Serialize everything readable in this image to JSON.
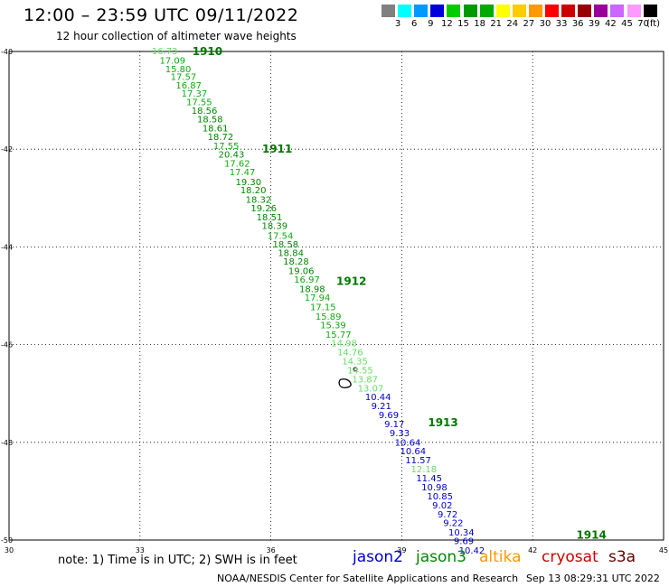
{
  "header": {
    "title": "12:00 – 23:59 UTC 09/11/2022",
    "subtitle": "12 hour collection of altimeter wave heights"
  },
  "scale": {
    "colors": [
      "#808080",
      "#00ffff",
      "#0099ff",
      "#0000dd",
      "#00cc00",
      "#009900",
      "#00aa00",
      "#ffff00",
      "#ffcc00",
      "#ff9900",
      "#ff0000",
      "#cc0000",
      "#990000",
      "#990099",
      "#cc66ff",
      "#ff99ff",
      "#000000"
    ],
    "labels": [
      "3",
      "6",
      "9",
      "12",
      "15",
      "18",
      "21",
      "24",
      "27",
      "30",
      "33",
      "36",
      "39",
      "42",
      "45",
      "70"
    ],
    "unit": "(ft)"
  },
  "axes": {
    "lon_ticks": [
      "30",
      "33",
      "36",
      "39",
      "42",
      "45"
    ],
    "lat_ticks": [
      "-40",
      "-42",
      "-44",
      "-46",
      "-48",
      "-50"
    ]
  },
  "chart_data": {
    "type": "map",
    "x_range": [
      30,
      45
    ],
    "y_range": [
      -50,
      -40
    ],
    "grid": true,
    "hour_markers": [
      {
        "label": "1910",
        "lon": 34.2,
        "lat": -40.0
      },
      {
        "label": "1911",
        "lon": 35.8,
        "lat": -42.0
      },
      {
        "label": "1912",
        "lon": 37.5,
        "lat": -44.7
      },
      {
        "label": "1913",
        "lon": 39.6,
        "lat": -47.6
      },
      {
        "label": "1914",
        "lon": 43.0,
        "lat": -49.9
      }
    ],
    "readings": [
      {
        "v": "16.73",
        "sat": "jason3",
        "h": "l",
        "lon": 33.27,
        "lat": -40.0
      },
      {
        "v": "17.09",
        "sat": "jason3",
        "h": "m",
        "lon": 33.45,
        "lat": -40.19
      },
      {
        "v": "15.80",
        "sat": "jason3",
        "h": "m",
        "lon": 33.58,
        "lat": -40.37
      },
      {
        "v": "17.57",
        "sat": "jason3",
        "h": "m",
        "lon": 33.7,
        "lat": -40.53
      },
      {
        "v": "16.87",
        "sat": "jason3",
        "h": "m",
        "lon": 33.82,
        "lat": -40.7
      },
      {
        "v": "17.37",
        "sat": "jason3",
        "h": "m",
        "lon": 33.95,
        "lat": -40.87
      },
      {
        "v": "17.55",
        "sat": "jason3",
        "h": "m",
        "lon": 34.06,
        "lat": -41.04
      },
      {
        "v": "18.56",
        "sat": "jason3",
        "h": "d",
        "lon": 34.18,
        "lat": -41.22
      },
      {
        "v": "18.58",
        "sat": "jason3",
        "h": "d",
        "lon": 34.31,
        "lat": -41.4
      },
      {
        "v": "18.61",
        "sat": "jason3",
        "h": "d",
        "lon": 34.43,
        "lat": -41.58
      },
      {
        "v": "18.72",
        "sat": "jason3",
        "h": "d",
        "lon": 34.55,
        "lat": -41.76
      },
      {
        "v": "17.55",
        "sat": "jason3",
        "h": "m",
        "lon": 34.68,
        "lat": -41.94
      },
      {
        "v": "20.43",
        "sat": "jason3",
        "h": "d",
        "lon": 34.8,
        "lat": -42.12
      },
      {
        "v": "17.62",
        "sat": "jason3",
        "h": "m",
        "lon": 34.93,
        "lat": -42.3
      },
      {
        "v": "17.47",
        "sat": "jason3",
        "h": "m",
        "lon": 35.05,
        "lat": -42.48
      },
      {
        "v": "19.30",
        "sat": "jason3",
        "h": "d",
        "lon": 35.19,
        "lat": -42.68
      },
      {
        "v": "18.20",
        "sat": "jason3",
        "h": "d",
        "lon": 35.3,
        "lat": -42.85
      },
      {
        "v": "18.32",
        "sat": "jason3",
        "h": "d",
        "lon": 35.42,
        "lat": -43.04
      },
      {
        "v": "19.26",
        "sat": "jason3",
        "h": "d",
        "lon": 35.54,
        "lat": -43.22
      },
      {
        "v": "18.51",
        "sat": "jason3",
        "h": "d",
        "lon": 35.67,
        "lat": -43.4
      },
      {
        "v": "18.39",
        "sat": "jason3",
        "h": "d",
        "lon": 35.79,
        "lat": -43.58
      },
      {
        "v": "17.54",
        "sat": "jason3",
        "h": "m",
        "lon": 35.92,
        "lat": -43.78
      },
      {
        "v": "18.58",
        "sat": "jason3",
        "h": "d",
        "lon": 36.04,
        "lat": -43.96
      },
      {
        "v": "18.84",
        "sat": "jason3",
        "h": "d",
        "lon": 36.16,
        "lat": -44.13
      },
      {
        "v": "18.28",
        "sat": "jason3",
        "h": "d",
        "lon": 36.28,
        "lat": -44.31
      },
      {
        "v": "19.06",
        "sat": "jason3",
        "h": "d",
        "lon": 36.4,
        "lat": -44.5
      },
      {
        "v": "16.97",
        "sat": "jason3",
        "h": "m",
        "lon": 36.53,
        "lat": -44.68
      },
      {
        "v": "18.98",
        "sat": "jason3",
        "h": "d",
        "lon": 36.65,
        "lat": -44.87
      },
      {
        "v": "17.94",
        "sat": "jason3",
        "h": "m",
        "lon": 36.77,
        "lat": -45.05
      },
      {
        "v": "17.15",
        "sat": "jason3",
        "h": "m",
        "lon": 36.9,
        "lat": -45.24
      },
      {
        "v": "15.89",
        "sat": "jason3",
        "h": "m",
        "lon": 37.02,
        "lat": -45.43
      },
      {
        "v": "15.39",
        "sat": "jason3",
        "h": "m",
        "lon": 37.13,
        "lat": -45.61
      },
      {
        "v": "15.77",
        "sat": "jason3",
        "h": "m",
        "lon": 37.25,
        "lat": -45.8
      },
      {
        "v": "14.98",
        "sat": "jason3",
        "h": "l",
        "lon": 37.38,
        "lat": -45.98
      },
      {
        "v": "14.76",
        "sat": "jason3",
        "h": "l",
        "lon": 37.52,
        "lat": -46.16
      },
      {
        "v": "14.35",
        "sat": "jason3",
        "h": "l",
        "lon": 37.63,
        "lat": -46.35
      },
      {
        "v": "14.55",
        "sat": "jason3",
        "h": "l",
        "lon": 37.75,
        "lat": -46.53
      },
      {
        "v": "13.87",
        "sat": "jason3",
        "h": "l",
        "lon": 37.86,
        "lat": -46.72
      },
      {
        "v": "13.07",
        "sat": "jason3",
        "h": "l",
        "lon": 37.99,
        "lat": -46.9
      },
      {
        "v": "10.44",
        "sat": "jason2",
        "h": "b",
        "lon": 38.16,
        "lat": -47.08
      },
      {
        "v": "9.21",
        "sat": "jason2",
        "h": "b",
        "lon": 38.3,
        "lat": -47.26
      },
      {
        "v": "9.69",
        "sat": "jason2",
        "h": "b",
        "lon": 38.47,
        "lat": -47.45
      },
      {
        "v": "9.17",
        "sat": "jason2",
        "h": "b",
        "lon": 38.6,
        "lat": -47.63
      },
      {
        "v": "9.33",
        "sat": "jason2",
        "h": "b",
        "lon": 38.72,
        "lat": -47.82
      },
      {
        "v": "10.64",
        "sat": "jason2",
        "h": "b",
        "lon": 38.84,
        "lat": -48.01
      },
      {
        "v": "10.64",
        "sat": "jason2",
        "h": "b",
        "lon": 38.96,
        "lat": -48.19
      },
      {
        "v": "11.57",
        "sat": "jason2",
        "h": "b",
        "lon": 39.08,
        "lat": -48.37
      },
      {
        "v": "12.18",
        "sat": "jason3",
        "h": "l",
        "lon": 39.21,
        "lat": -48.56
      },
      {
        "v": "11.45",
        "sat": "jason2",
        "h": "b",
        "lon": 39.33,
        "lat": -48.74
      },
      {
        "v": "10.98",
        "sat": "jason2",
        "h": "b",
        "lon": 39.45,
        "lat": -48.93
      },
      {
        "v": "10.85",
        "sat": "jason2",
        "h": "b",
        "lon": 39.58,
        "lat": -49.11
      },
      {
        "v": "9.02",
        "sat": "jason2",
        "h": "b",
        "lon": 39.7,
        "lat": -49.3
      },
      {
        "v": "9.72",
        "sat": "jason2",
        "h": "b",
        "lon": 39.82,
        "lat": -49.48
      },
      {
        "v": "9.22",
        "sat": "jason2",
        "h": "b",
        "lon": 39.95,
        "lat": -49.66
      },
      {
        "v": "10.34",
        "sat": "jason2",
        "h": "b",
        "lon": 40.07,
        "lat": -49.85
      },
      {
        "v": "9.69",
        "sat": "jason2",
        "h": "b",
        "lon": 40.19,
        "lat": -50.03
      },
      {
        "v": "10.42",
        "sat": "jason2",
        "h": "b",
        "lon": 40.31,
        "lat": -50.22
      }
    ]
  },
  "shade_colors": {
    "l": "#66dd66",
    "m": "#11aa11",
    "d": "#008800",
    "b": "#0000cc",
    "marker": "#007700"
  },
  "legend": {
    "note": "note: 1) Time is in UTC; 2) SWH is in feet",
    "satellites": [
      {
        "name": "jason2",
        "color": "#0000cc"
      },
      {
        "name": "jason3",
        "color": "#008800"
      },
      {
        "name": "altika",
        "color": "#ff9900"
      },
      {
        "name": "cryosat",
        "color": "#cc0000"
      },
      {
        "name": "s3a",
        "color": "#660000"
      }
    ]
  },
  "footer": {
    "credit": "NOAA/NESDIS Center for Satellite Applications and Research",
    "timestamp": "Sep 13 08:29:31 UTC 2022"
  }
}
